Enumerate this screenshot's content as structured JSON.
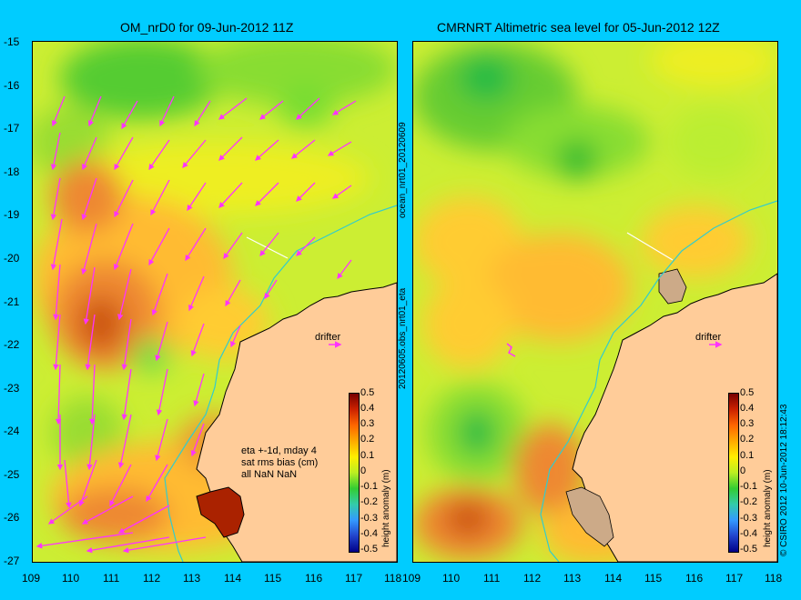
{
  "panels": [
    {
      "title": "OM_nrD0 for 09-Jun-2012 11Z"
    },
    {
      "title": "CMRNRT Altimetric sea level  for 05-Jun-2012 12Z"
    }
  ],
  "axes": {
    "y_ticks": [
      "-15",
      "-16",
      "-17",
      "-18",
      "-19",
      "-20",
      "-21",
      "-22",
      "-23",
      "-24",
      "-25",
      "-26",
      "-27"
    ],
    "x_ticks": [
      "109",
      "110",
      "111",
      "112",
      "113",
      "114",
      "115",
      "116",
      "117",
      "118"
    ]
  },
  "side_labels": {
    "left_top": "ocean_nrt01_20120609",
    "left_bottom": "20120605.obs_nrt01_eta",
    "right": "© CSIRO 2012   10-Jun-2012 18:12:43"
  },
  "drifter_label": "drifter",
  "annotation": [
    "eta +-1d, mday 4",
    "sat rms bias (cm)",
    "all NaN NaN"
  ],
  "colorbar": {
    "label": "height anomaly (m)",
    "ticks": [
      "0.5",
      "0.4",
      "0.3",
      "0.2",
      "0.1",
      "0",
      "-0.1",
      "-0.2",
      "-0.3",
      "-0.4",
      "-0.5"
    ]
  },
  "colors": {
    "background": "#00ccff",
    "land": "#ffcc99",
    "arrows": "#ff33ff",
    "coast_line": "#33cccc"
  }
}
